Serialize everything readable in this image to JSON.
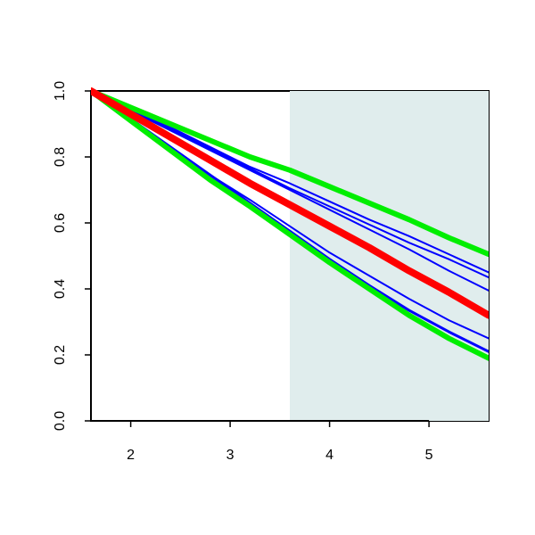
{
  "chart_data": {
    "type": "line",
    "x": [
      1.6,
      2,
      2.4,
      2.8,
      3.2,
      3.6,
      4,
      4.4,
      4.8,
      5.2,
      5.6
    ],
    "series": [
      {
        "color": "#0000ff",
        "linewidth": 2,
        "values": [
          1.0,
          0.945,
          0.89,
          0.83,
          0.77,
          0.72,
          0.665,
          0.61,
          0.56,
          0.505,
          0.45
        ]
      },
      {
        "color": "#0000ff",
        "linewidth": 2,
        "values": [
          1.0,
          0.94,
          0.885,
          0.825,
          0.765,
          0.705,
          0.65,
          0.595,
          0.54,
          0.49,
          0.435
        ]
      },
      {
        "color": "#0000ff",
        "linewidth": 2,
        "values": [
          1.0,
          0.94,
          0.88,
          0.82,
          0.76,
          0.7,
          0.64,
          0.58,
          0.52,
          0.455,
          0.395
        ]
      },
      {
        "color": "#0000ff",
        "linewidth": 2,
        "values": [
          1.0,
          0.91,
          0.83,
          0.745,
          0.67,
          0.59,
          0.51,
          0.44,
          0.37,
          0.305,
          0.25
        ]
      },
      {
        "color": "#0000ff",
        "linewidth": 3,
        "values": [
          1.0,
          0.915,
          0.83,
          0.745,
          0.66,
          0.575,
          0.49,
          0.41,
          0.335,
          0.27,
          0.21
        ]
      },
      {
        "color": "#00ee00",
        "linewidth": 6,
        "values": [
          1.0,
          0.95,
          0.9,
          0.85,
          0.8,
          0.76,
          0.71,
          0.66,
          0.61,
          0.555,
          0.505
        ]
      },
      {
        "color": "#00ee00",
        "linewidth": 6,
        "values": [
          1.0,
          0.91,
          0.82,
          0.73,
          0.65,
          0.565,
          0.48,
          0.4,
          0.32,
          0.25,
          0.19
        ]
      },
      {
        "color": "#ff0000",
        "linewidth": 8,
        "values": [
          1.0,
          0.93,
          0.86,
          0.79,
          0.72,
          0.655,
          0.59,
          0.525,
          0.455,
          0.39,
          0.32
        ]
      }
    ],
    "shaded_region": {
      "x": [
        3.6,
        5.6
      ],
      "color": "#e0eded"
    },
    "xlim": [
      1.6,
      5.6
    ],
    "xticks": [
      2,
      3,
      4,
      5
    ],
    "ylim": [
      0,
      1
    ],
    "yticks": [
      {
        "value": 0,
        "label": "0.0"
      },
      0.2,
      0.4,
      0.6,
      0.8,
      {
        "value": 1,
        "label": "1.0"
      }
    ]
  }
}
